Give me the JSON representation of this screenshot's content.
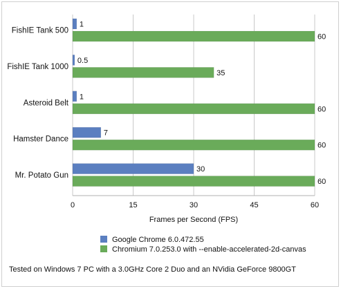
{
  "chart_data": {
    "type": "bar",
    "orientation": "horizontal",
    "categories": [
      "FishIE Tank 500",
      "FishIE Tank 1000",
      "Asteroid Belt",
      "Hamster Dance",
      "Mr. Potato Gun"
    ],
    "series": [
      {
        "name": "Google Chrome 6.0.472.55",
        "color": "#5b7fc0",
        "values": [
          1,
          0.5,
          1,
          7,
          30
        ]
      },
      {
        "name": "Chromium 7.0.253.0 with --enable-accelerated-2d-canvas",
        "color": "#6aab5a",
        "values": [
          60,
          35,
          60,
          60,
          60
        ]
      }
    ],
    "xlabel": "Frames per Second (FPS)",
    "xlim": [
      0,
      60
    ],
    "xticks": [
      0,
      15,
      30,
      45,
      60
    ],
    "grid": "vertical",
    "legend_position": "bottom"
  },
  "footnote": "Tested on Windows 7 PC with a 3.0GHz Core 2 Duo and an NVidia GeForce 9800GT"
}
